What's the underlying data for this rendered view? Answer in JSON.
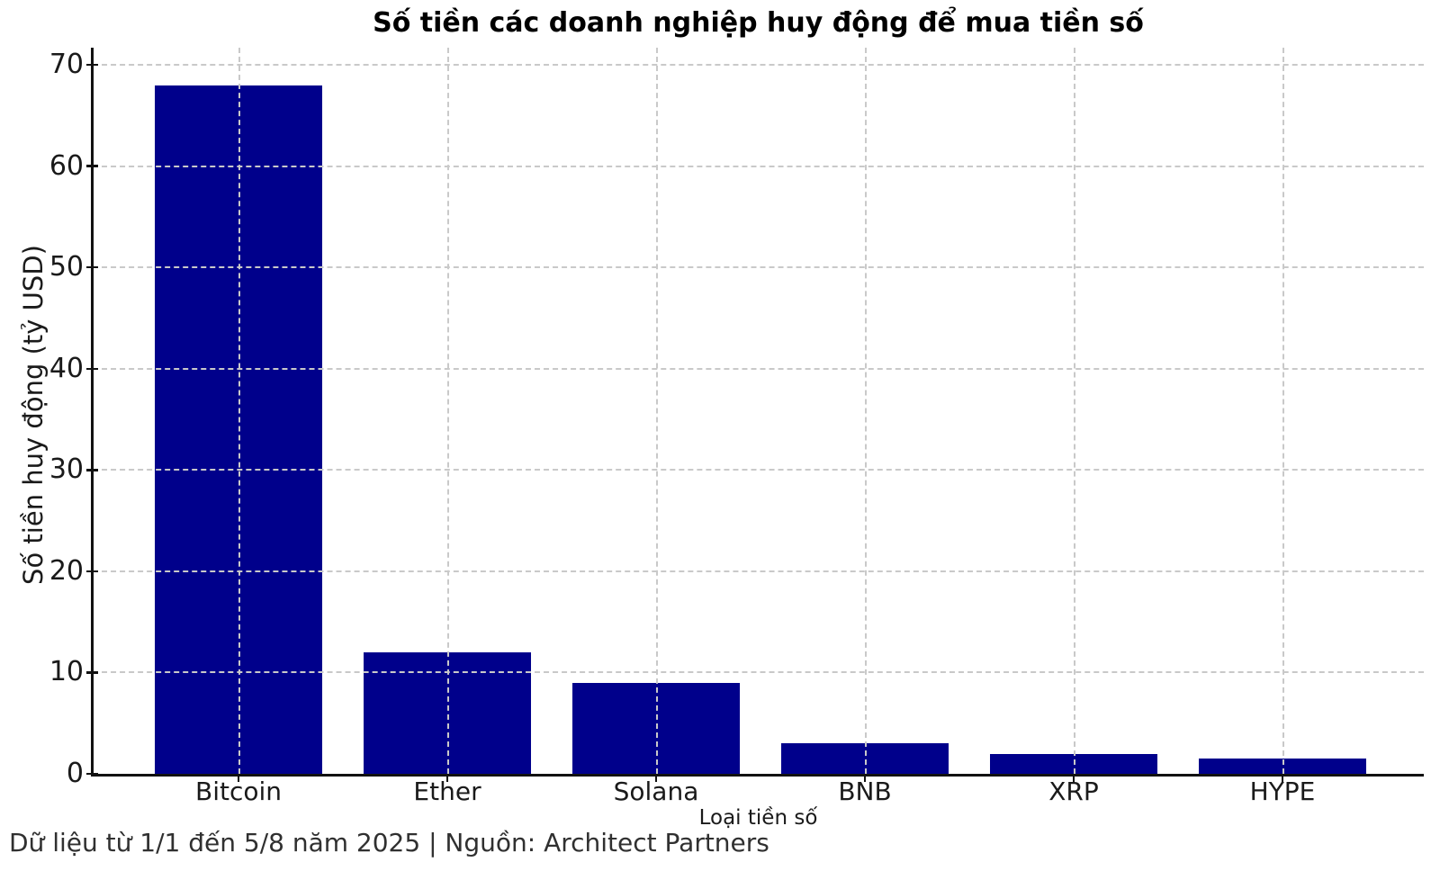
{
  "chart_data": {
    "type": "bar",
    "title": "Số tiền các doanh nghiệp huy động để mua tiền số",
    "xlabel": "Loại tiền số",
    "ylabel": "Số tiền huy động (tỷ USD)",
    "categories": [
      "Bitcoin",
      "Ether",
      "Solana",
      "BNB",
      "XRP",
      "HYPE"
    ],
    "values": [
      68,
      12,
      9,
      3,
      2,
      1.5
    ],
    "yticks": [
      0,
      10,
      20,
      30,
      40,
      50,
      60,
      70
    ],
    "ylim": [
      0,
      71.7
    ],
    "bar_color": "#00008B",
    "grid": "dashed, horizontal and vertical, drawn over bars",
    "legend": "none",
    "footnote": "Dữ liệu từ 1/1 đến 5/8 năm 2025 | Nguồn: Architect Partners"
  }
}
